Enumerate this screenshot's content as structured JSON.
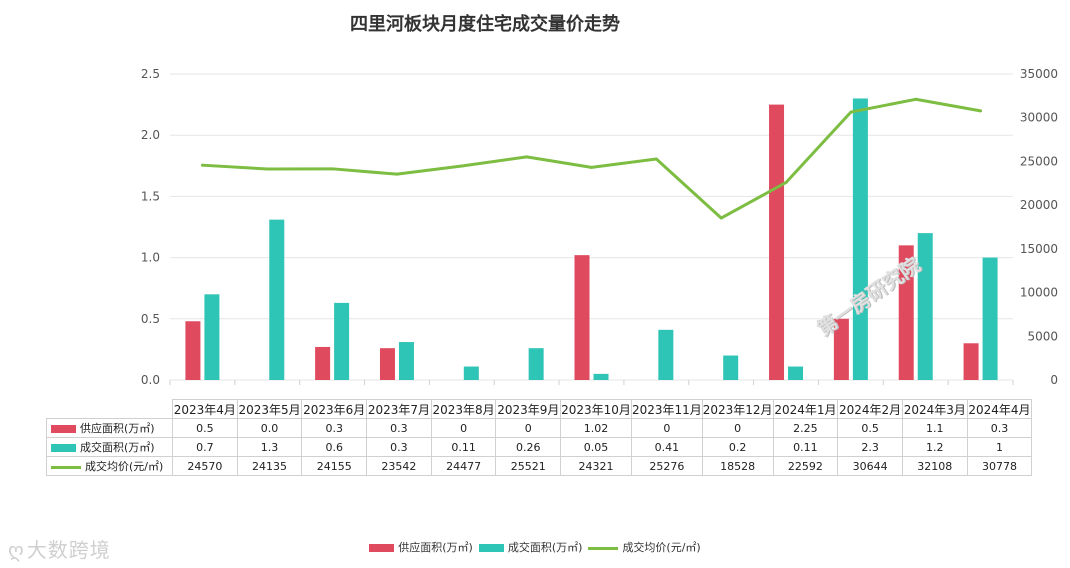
{
  "chart_data": {
    "type": "bar",
    "title": "四里河板块月度住宅成交量价走势",
    "categories": [
      "2023年4月",
      "2023年5月",
      "2023年6月",
      "2023年7月",
      "2023年8月",
      "2023年9月",
      "2023年10月",
      "2023年11月",
      "2023年12月",
      "2024年1月",
      "2024年2月",
      "2024年3月",
      "2024年4月"
    ],
    "series": [
      {
        "name": "供应面积(万㎡)",
        "kind": "bar",
        "axis": "left",
        "color": "#e04a5f",
        "values": [
          0.48,
          0,
          0.27,
          0.26,
          0,
          0,
          1.02,
          0,
          0,
          2.25,
          0.5,
          1.1,
          0.3
        ],
        "table_labels": [
          "0.5",
          "0.0",
          "0.3",
          "0.3",
          "0",
          "0",
          "1.02",
          "0",
          "0",
          "2.25",
          "0.5",
          "1.1",
          "0.3"
        ]
      },
      {
        "name": "成交面积(万㎡)",
        "kind": "bar",
        "axis": "left",
        "color": "#2ec4b6",
        "values": [
          0.7,
          1.31,
          0.63,
          0.31,
          0.11,
          0.26,
          0.05,
          0.41,
          0.2,
          0.11,
          2.3,
          1.2,
          1.0
        ],
        "table_labels": [
          "0.7",
          "1.3",
          "0.6",
          "0.3",
          "0.11",
          "0.26",
          "0.05",
          "0.41",
          "0.2",
          "0.11",
          "2.3",
          "1.2",
          "1"
        ]
      },
      {
        "name": "成交均价(元/㎡)",
        "kind": "line",
        "axis": "right",
        "color": "#7cbd42",
        "values": [
          24570,
          24135,
          24155,
          23542,
          24477,
          25521,
          24321,
          25276,
          18528,
          22592,
          30644,
          32108,
          30778
        ],
        "table_labels": [
          "24570",
          "24135",
          "24155",
          "23542",
          "24477",
          "25521",
          "24321",
          "25276",
          "18528",
          "22592",
          "30644",
          "32108",
          "30778"
        ]
      }
    ],
    "y_left": {
      "ylim": [
        0,
        2.5
      ],
      "ticks": [
        "0.0",
        "0.5",
        "1.0",
        "1.5",
        "2.0",
        "2.5"
      ]
    },
    "y_right": {
      "ylim": [
        0,
        35000
      ],
      "ticks": [
        "0",
        "5000",
        "10000",
        "15000",
        "20000",
        "25000",
        "30000",
        "35000"
      ]
    },
    "grid": true,
    "legend": "bottom-center"
  },
  "watermarks": {
    "left": "大数跨境",
    "left_icon": "bubble-logo-icon",
    "right": "第一房研究院"
  }
}
